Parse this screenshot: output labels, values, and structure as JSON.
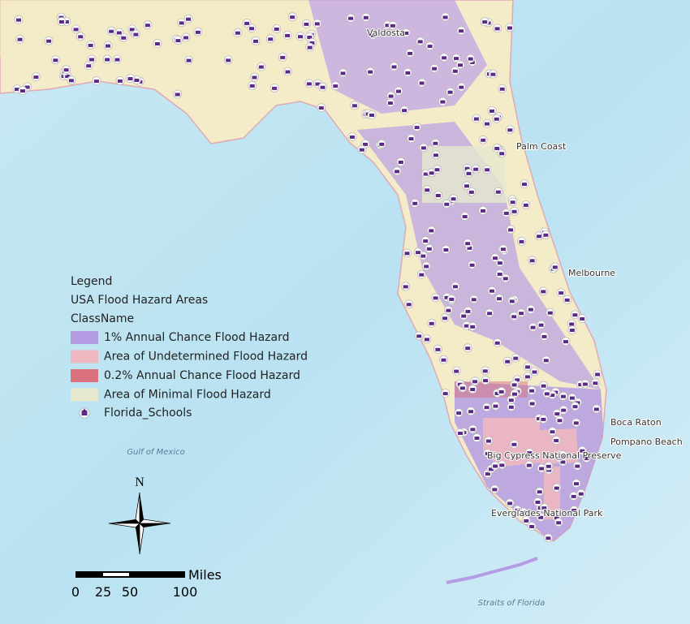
{
  "legend": {
    "title": "Legend",
    "layer": "USA Flood Hazard Areas",
    "field": "ClassName",
    "items": [
      {
        "label": "1% Annual Chance Flood Hazard",
        "color": "#b39ce3"
      },
      {
        "label": "Area of Undetermined Flood Hazard",
        "color": "#efb7c0"
      },
      {
        "label": "0.2% Annual Chance Flood Hazard",
        "color": "#d9727e"
      },
      {
        "label": "Area of Minimal Flood Hazard",
        "color": "#e6e8cf"
      }
    ],
    "points_label": "Florida_Schools"
  },
  "places": [
    "Valdosta",
    "Palm Coast",
    "Melbourne",
    "Boca Raton",
    "Pompano Beach",
    "Big Cypress National Preserve",
    "Everglades National Park"
  ],
  "water_labels": [
    "Gulf of Mexico",
    "Straits of Florida"
  ],
  "north": "N",
  "scale": {
    "unit": "Miles",
    "labels": [
      "0",
      "25",
      "50",
      "100"
    ]
  }
}
